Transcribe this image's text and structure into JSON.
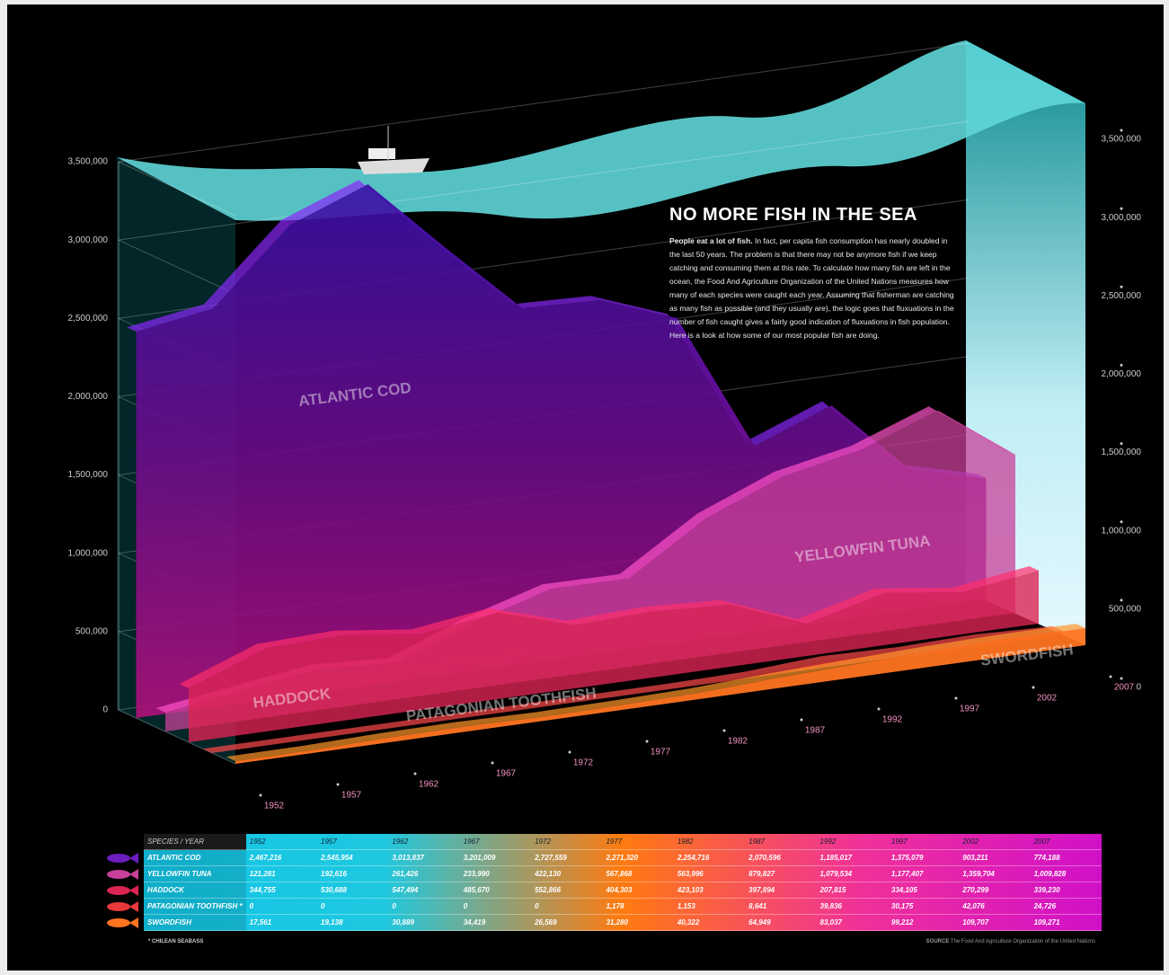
{
  "chart_data": {
    "type": "area",
    "title": "NO MORE FISH IN THE SEA",
    "intro_lead": "People eat a lot of fish.",
    "intro_body": "In fact, per capita fish consumption has nearly doubled in the last 50 years. The problem is that there may not be anymore fish if we keep catching and consuming them at this rate. To calculate how many fish are left in the ocean, the Food And Agriculture Organization of the United Nations measures how many of each species were caught each year. Assuming that fisherman are catching as many fish as possible (and they usually are), the logic goes that fluxuations in the number of fish caught gives a fairly good indication of fluxuations in fish population. Here is a look at how some of our most popular fish are doing.",
    "table_header": "SPECIES / YEAR",
    "footnote_marker": "*",
    "footnote": "* CHILEAN SEABASS",
    "source_label": "SOURCE",
    "source": "The Food And Agriculture Organization of the United Nations",
    "categories": [
      "1952",
      "1957",
      "1962",
      "1967",
      "1972",
      "1977",
      "1982",
      "1987",
      "1992",
      "1997",
      "2002",
      "2007"
    ],
    "ylim": [
      0,
      3500000
    ],
    "yticks": [
      0,
      {
        "value": 500000,
        "label": "500,000"
      },
      {
        "value": 1000000,
        "label": "1,000,000"
      },
      {
        "value": 1500000,
        "label": "1,500,000"
      },
      {
        "value": 2000000,
        "label": "2,000,000"
      },
      {
        "value": 2500000,
        "label": "2,500,000"
      },
      {
        "value": 3000000,
        "label": "3,000,000"
      },
      {
        "value": 3500000,
        "label": "3,500,000"
      }
    ],
    "grid": true,
    "series": [
      {
        "name": "ATLANTIC COD",
        "color": "#6a1ec0",
        "values": [
          2467216,
          2545954,
          3013837,
          3201009,
          2727559,
          2271320,
          2254716,
          2070596,
          1185017,
          1375079,
          903211,
          774188
        ],
        "value_labels": [
          "2,467,216",
          "2,545,954",
          "3,013,837",
          "3,201,009",
          "2,727,559",
          "2,271,320",
          "2,254,716",
          "2,070,596",
          "1,185,017",
          "1,375,079",
          "903,211",
          "774,188"
        ]
      },
      {
        "name": "YELLOWFIN TUNA",
        "color": "#c8409a",
        "values": [
          121281,
          192616,
          261426,
          233990,
          422130,
          567868,
          563996,
          879827,
          1079534,
          1177407,
          1359704,
          1009828
        ],
        "value_labels": [
          "121,281",
          "192,616",
          "261,426",
          "233,990",
          "422,130",
          "567,868",
          "563,996",
          "879,827",
          "1,079,534",
          "1,177,407",
          "1,359,704",
          "1,009,828"
        ]
      },
      {
        "name": "HADDOCK",
        "color": "#dc2452",
        "values": [
          344755,
          530688,
          547494,
          485670,
          552866,
          404303,
          423103,
          397894,
          207815,
          334105,
          270299,
          339230
        ],
        "value_labels": [
          "344,755",
          "530,688",
          "547,494",
          "485,670",
          "552,866",
          "404,303",
          "423,103",
          "397,894",
          "207,815",
          "334,105",
          "270,299",
          "339,230"
        ]
      },
      {
        "name": "PATAGONIAN TOOTHFISH",
        "color": "#e8383a",
        "values": [
          0,
          0,
          0,
          0,
          0,
          1178,
          1153,
          8641,
          39836,
          30175,
          42076,
          24726
        ],
        "value_labels": [
          "0",
          "0",
          "0",
          "0",
          "0",
          "1,178",
          "1,153",
          "8,641",
          "39,836",
          "30,175",
          "42,076",
          "24,726"
        ]
      },
      {
        "name": "SWORDFISH",
        "color": "#ff7420",
        "values": [
          17561,
          19138,
          30889,
          34419,
          26569,
          31280,
          40322,
          64949,
          83037,
          99212,
          109707,
          109271
        ],
        "value_labels": [
          "17,561",
          "19,138",
          "30,889",
          "34,419",
          "26,569",
          "31,280",
          "40,322",
          "64,949",
          "83,037",
          "99,212",
          "109,707",
          "109,271"
        ]
      }
    ]
  }
}
